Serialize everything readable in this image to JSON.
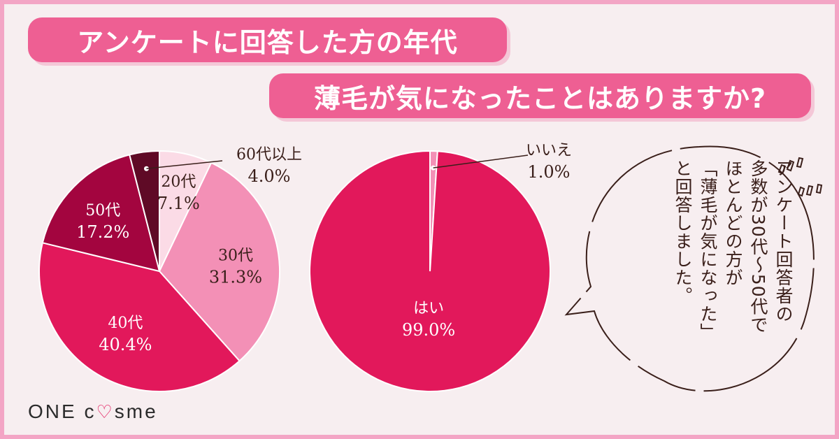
{
  "banner1": "アンケートに回答した方の年代",
  "banner2": "薄毛が気になったことはありますか?",
  "chart_data": [
    {
      "type": "pie",
      "categories": [
        "20代",
        "30代",
        "40代",
        "50代",
        "60代以上"
      ],
      "values": [
        7.1,
        31.3,
        40.4,
        17.2,
        4.0
      ],
      "labels": [
        "7.1%",
        "31.3%",
        "40.4%",
        "17.2%",
        "4.0%"
      ],
      "colors": [
        "#fbdbe6",
        "#f390b6",
        "#e2185b",
        "#a3053f",
        "#5f0a26"
      ],
      "label_colors": [
        "#3a1f1a",
        "#3a1f1a",
        "#ffffff",
        "#ffffff",
        "#3a1f1a"
      ]
    },
    {
      "type": "pie",
      "categories": [
        "いいえ",
        "はい"
      ],
      "values": [
        1.0,
        99.0
      ],
      "labels": [
        "1.0%",
        "99.0%"
      ],
      "colors": [
        "#f390b6",
        "#e2185b"
      ],
      "label_colors": [
        "#3a1f1a",
        "#ffffff"
      ]
    }
  ],
  "bubble": {
    "lines": [
      "アンケート回答者の",
      "多数が30代～50代で",
      "ほとんどの方が",
      "「薄毛が気になった」",
      "と回答しました。"
    ]
  },
  "logo": {
    "part1": "ONE c",
    "heart": "♡",
    "part2": "sme"
  }
}
